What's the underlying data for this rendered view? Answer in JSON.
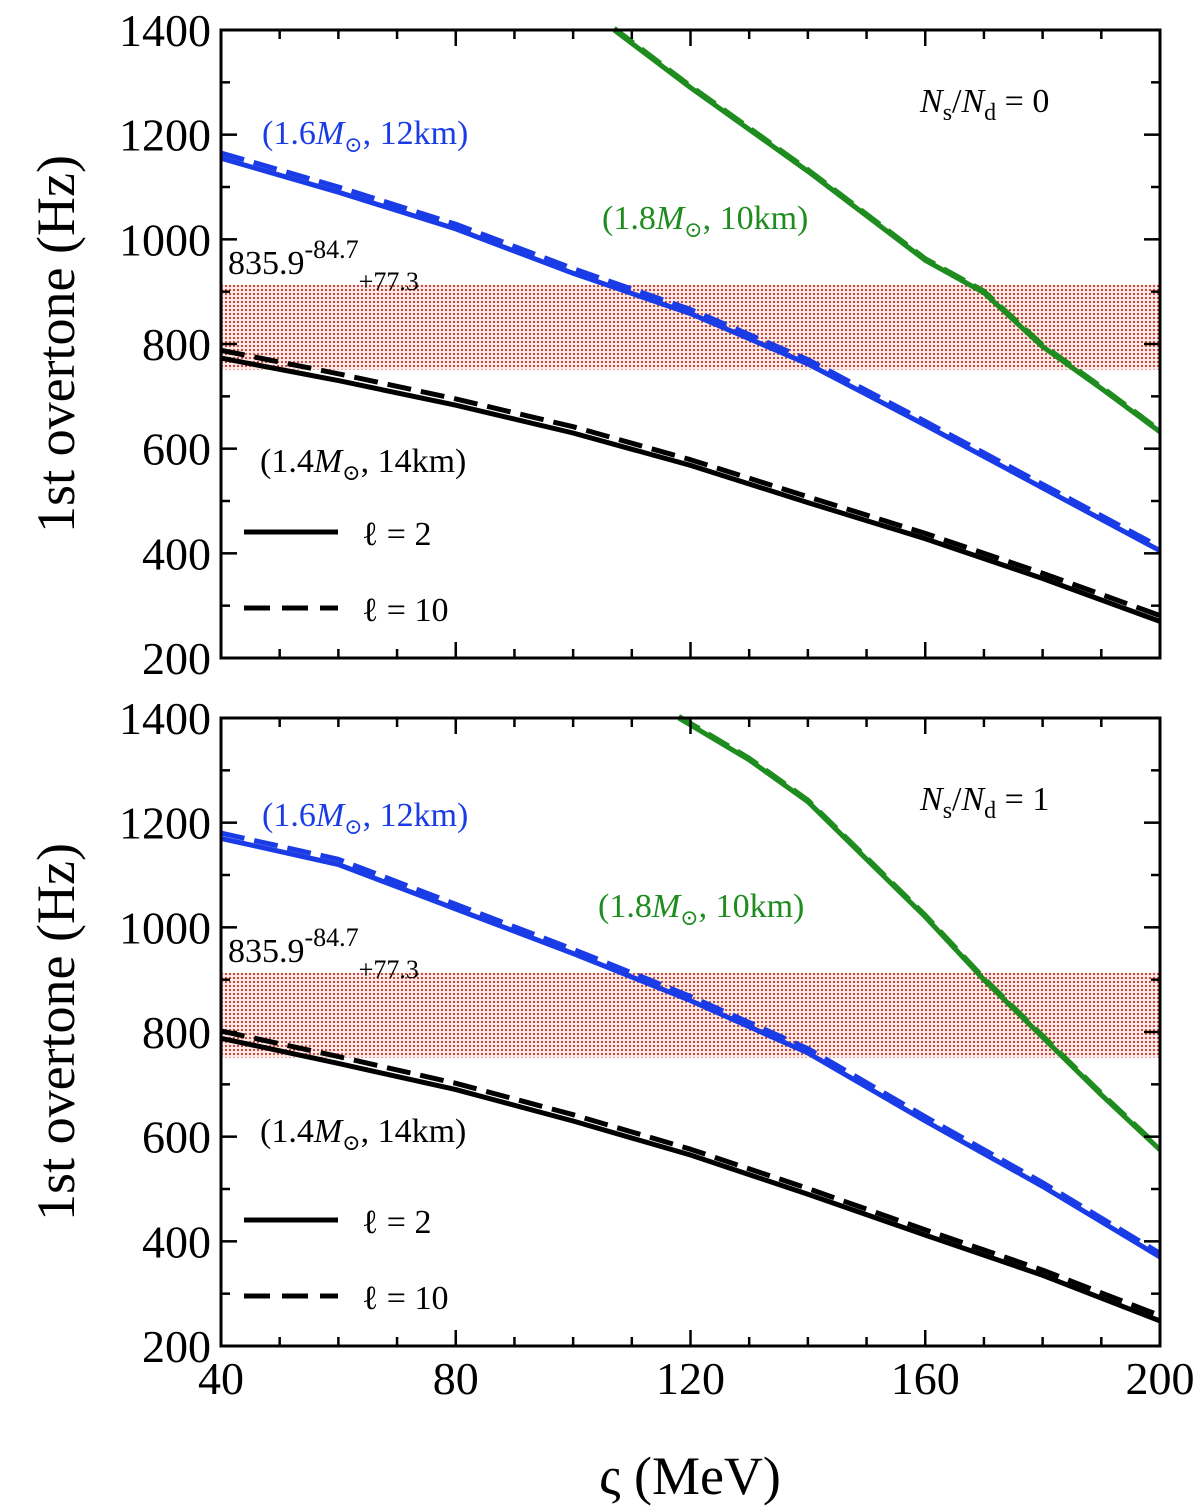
{
  "chart_data": [
    {
      "type": "line",
      "panel": "top",
      "ratio_label": "N_s/N_d = 0",
      "ratio_parts": {
        "n_s": "N",
        "s_sub": "s",
        "slash": "/",
        "n_d": "N",
        "d_sub": "d",
        "eq": " = 0"
      },
      "xlabel": "ς (MeV)",
      "ylabel": "1st overtone (Hz)",
      "xlim": [
        40,
        200
      ],
      "ylim": [
        200,
        1400
      ],
      "xticks": [
        "40",
        "80",
        "120",
        "160",
        "200"
      ],
      "yticks": [
        "200",
        "400",
        "600",
        "800",
        "1000",
        "1200",
        "1400"
      ],
      "band": {
        "center": "835.9",
        "minus": "-84.7",
        "plus": "+77.3",
        "low": 751.2,
        "high": 913.2,
        "color": "#c0392b"
      },
      "series": [
        {
          "name": "(1.4M⊙, 14km) ℓ = 2",
          "color": "#000000",
          "style": "solid",
          "x": [
            40,
            60,
            80,
            100,
            120,
            140,
            160,
            180,
            200
          ],
          "y": [
            773,
            730,
            683,
            630,
            568,
            497,
            428,
            352,
            270
          ]
        },
        {
          "name": "(1.4M⊙, 14km) ℓ = 10",
          "color": "#000000",
          "style": "dashed",
          "x": [
            40,
            60,
            80,
            100,
            120,
            140,
            160,
            180,
            200
          ],
          "y": [
            788,
            743,
            695,
            642,
            579,
            508,
            438,
            362,
            281
          ]
        },
        {
          "name": "(1.6M⊙, 12km) ℓ = 2",
          "color": "#1a3ce6",
          "style": "solid",
          "x": [
            40,
            60,
            80,
            100,
            120,
            140,
            160,
            180,
            200
          ],
          "y": [
            1155,
            1090,
            1020,
            935,
            858,
            762,
            645,
            525,
            405
          ]
        },
        {
          "name": "(1.6M⊙, 12km) ℓ = 10",
          "color": "#1a3ce6",
          "style": "dashed",
          "x": [
            40,
            60,
            80,
            100,
            120,
            140,
            160,
            180,
            200
          ],
          "y": [
            1165,
            1100,
            1029,
            944,
            866,
            770,
            652,
            532,
            412
          ]
        },
        {
          "name": "(1.8M⊙, 10km) ℓ = 2",
          "color": "#1e8c1e",
          "style": "solid",
          "x": [
            107,
            120,
            140,
            160,
            170,
            180,
            190,
            200
          ],
          "y": [
            1400,
            1290,
            1130,
            960,
            898,
            795,
            715,
            632
          ]
        },
        {
          "name": "(1.8M⊙, 10km) ℓ = 10",
          "color": "#1e8c1e",
          "style": "dashed",
          "x": [
            107,
            120,
            140,
            160,
            170,
            180,
            190,
            200
          ],
          "y": [
            1403,
            1293,
            1133,
            963,
            901,
            798,
            718,
            635
          ]
        }
      ],
      "annotations": [
        {
          "prefix": "(1.4",
          "m": "M",
          "sub": "⊙",
          "suffix": ", 14km)",
          "color": "#000000"
        },
        {
          "prefix": "(1.6",
          "m": "M",
          "sub": "⊙",
          "suffix": ", 12km)",
          "color": "#1a3ce6"
        },
        {
          "prefix": "(1.8",
          "m": "M",
          "sub": "⊙",
          "suffix": ", 10km)",
          "color": "#1e8c1e"
        }
      ],
      "legend": [
        {
          "label": "ℓ = 2",
          "style": "solid"
        },
        {
          "label": "ℓ = 10",
          "style": "dashed"
        }
      ]
    },
    {
      "type": "line",
      "panel": "bottom",
      "ratio_label": "N_s/N_d = 1",
      "ratio_parts": {
        "n_s": "N",
        "s_sub": "s",
        "slash": "/",
        "n_d": "N",
        "d_sub": "d",
        "eq": " = 1"
      },
      "xlabel": "ς (MeV)",
      "ylabel": "1st overtone (Hz)",
      "xlim": [
        40,
        200
      ],
      "ylim": [
        200,
        1400
      ],
      "xticks": [
        "40",
        "80",
        "120",
        "160",
        "200"
      ],
      "yticks": [
        "200",
        "400",
        "600",
        "800",
        "1000",
        "1200",
        "1400"
      ],
      "band": {
        "center": "835.9",
        "minus": "-84.7",
        "plus": "+77.3",
        "low": 751.2,
        "high": 913.2,
        "color": "#c0392b"
      },
      "series": [
        {
          "name": "(1.4M⊙, 14km) ℓ = 2",
          "color": "#000000",
          "style": "solid",
          "x": [
            40,
            60,
            80,
            100,
            120,
            140,
            160,
            180,
            200
          ],
          "y": [
            788,
            740,
            690,
            630,
            565,
            490,
            412,
            335,
            248
          ]
        },
        {
          "name": "(1.4M⊙, 14km) ℓ = 10",
          "color": "#000000",
          "style": "dashed",
          "x": [
            40,
            60,
            80,
            100,
            120,
            140,
            160,
            180,
            200
          ],
          "y": [
            802,
            753,
            702,
            642,
            576,
            501,
            422,
            345,
            258
          ]
        },
        {
          "name": "(1.6M⊙, 12km) ℓ = 2",
          "color": "#1a3ce6",
          "style": "solid",
          "x": [
            40,
            60,
            80,
            100,
            120,
            140,
            160,
            180,
            200
          ],
          "y": [
            1170,
            1120,
            1035,
            950,
            860,
            760,
            630,
            505,
            370
          ]
        },
        {
          "name": "(1.6M⊙, 12km) ℓ = 10",
          "color": "#1a3ce6",
          "style": "dashed",
          "x": [
            40,
            60,
            80,
            100,
            120,
            140,
            160,
            180,
            200
          ],
          "y": [
            1180,
            1130,
            1044,
            958,
            868,
            768,
            638,
            512,
            377
          ]
        },
        {
          "name": "(1.8M⊙, 10km) ℓ = 2",
          "color": "#1e8c1e",
          "style": "solid",
          "x": [
            118,
            130,
            140,
            150,
            160,
            170,
            180,
            190,
            200
          ],
          "y": [
            1400,
            1320,
            1240,
            1130,
            1020,
            900,
            790,
            680,
            575
          ]
        },
        {
          "name": "(1.8M⊙, 10km) ℓ = 10",
          "color": "#1e8c1e",
          "style": "dashed",
          "x": [
            118,
            130,
            140,
            150,
            160,
            170,
            180,
            190,
            200
          ],
          "y": [
            1403,
            1323,
            1243,
            1133,
            1023,
            903,
            793,
            683,
            578
          ]
        }
      ],
      "annotations": [
        {
          "prefix": "(1.4",
          "m": "M",
          "sub": "⊙",
          "suffix": ", 14km)",
          "color": "#000000"
        },
        {
          "prefix": "(1.6",
          "m": "M",
          "sub": "⊙",
          "suffix": ", 12km)",
          "color": "#1a3ce6"
        },
        {
          "prefix": "(1.8",
          "m": "M",
          "sub": "⊙",
          "suffix": ", 10km)",
          "color": "#1e8c1e"
        }
      ],
      "legend": [
        {
          "label": "ℓ = 2",
          "style": "solid"
        },
        {
          "label": "ℓ = 10",
          "style": "dashed"
        }
      ]
    }
  ]
}
